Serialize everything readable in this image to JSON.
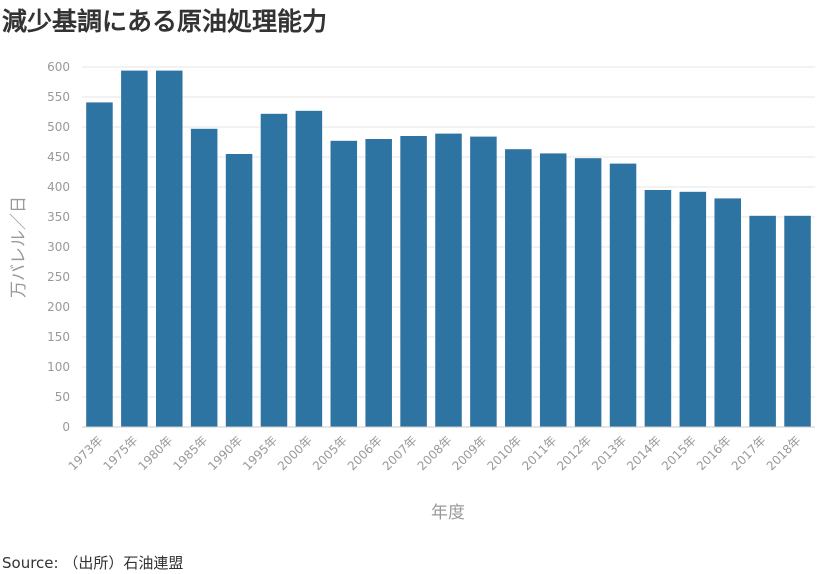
{
  "title": "減少基調にある原油処理能力",
  "source": "Source: （出所）石油連盟",
  "chart_data": {
    "type": "bar",
    "title": "減少基調にある原油処理能力",
    "xlabel": "年度",
    "ylabel": "万バレル／日",
    "categories": [
      "1973年",
      "1975年",
      "1980年",
      "1985年",
      "1990年",
      "1995年",
      "2000年",
      "2005年",
      "2006年",
      "2007年",
      "2008年",
      "2009年",
      "2010年",
      "2011年",
      "2012年",
      "2013年",
      "2014年",
      "2015年",
      "2016年",
      "2017年",
      "2018年"
    ],
    "values": [
      541,
      594,
      594,
      497,
      455,
      522,
      527,
      477,
      480,
      485,
      489,
      484,
      463,
      456,
      448,
      439,
      395,
      392,
      381,
      352,
      352
    ],
    "ylim": [
      0,
      600
    ],
    "yticks": [
      0,
      50,
      100,
      150,
      200,
      250,
      300,
      350,
      400,
      450,
      500,
      550,
      600
    ],
    "grid": true,
    "bar_color": "#2e74a2"
  }
}
